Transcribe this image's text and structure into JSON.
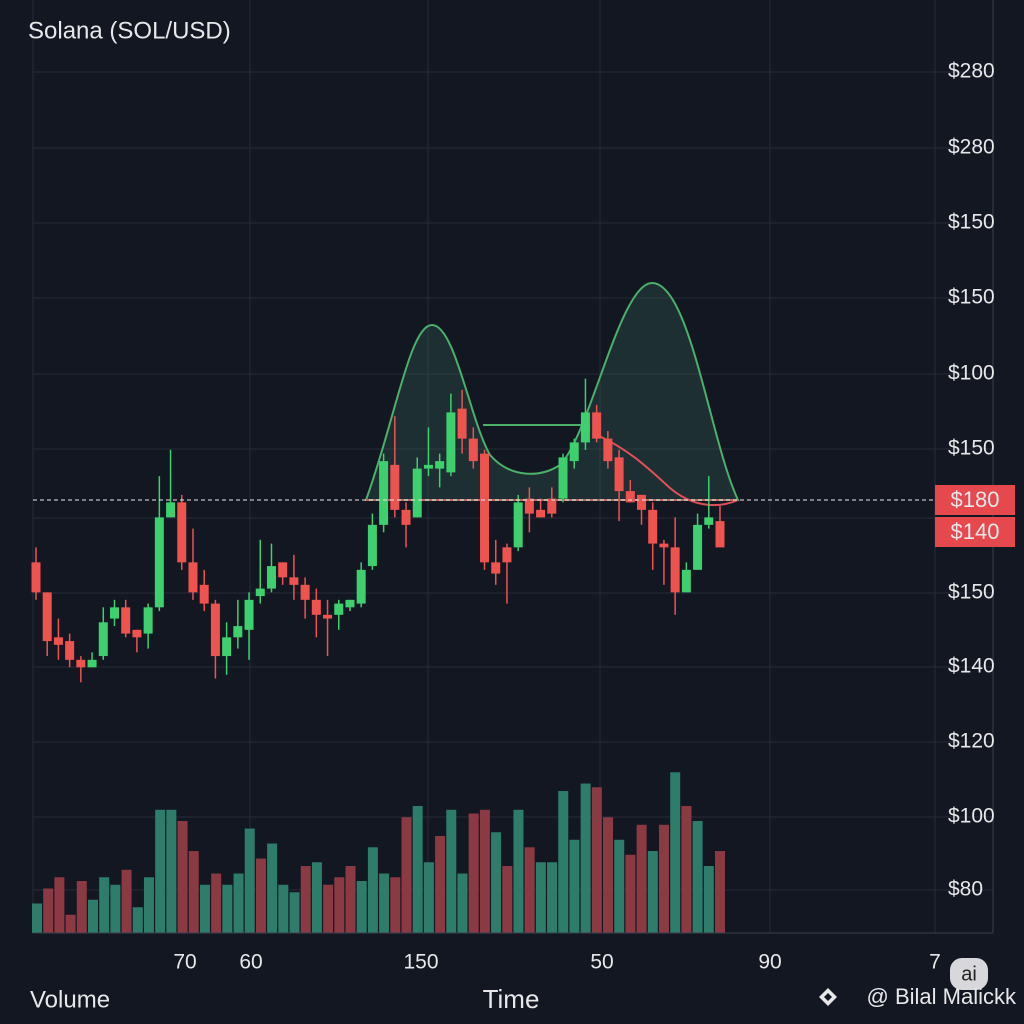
{
  "chart_data": {
    "type": "candlestick",
    "title": "Solana (SOL/USD)",
    "x_axis_title": "Time",
    "volume_title": "Volume",
    "x_axis_labels": [
      "70",
      "60",
      "150",
      "50",
      "90",
      "7"
    ],
    "y_axis_labels": [
      "$280",
      "$280",
      "$150",
      "$150",
      "$100",
      "$150",
      "$150",
      "$140",
      "$120",
      "$100",
      "$80"
    ],
    "price_badges": [
      "$180",
      "$140"
    ],
    "watermark": "@ Bilal Malickk",
    "badge": "ai",
    "ylim": [
      70,
      317
    ],
    "up_color": "#3ecf6e",
    "down_color": "#ef5350",
    "open": [
      167,
      159,
      147,
      146,
      141,
      139,
      142,
      152,
      155,
      149,
      148,
      155,
      179,
      183,
      167,
      161,
      156,
      142,
      147,
      149,
      158,
      160,
      167,
      163,
      161,
      157,
      153,
      153,
      155,
      156,
      166,
      177,
      193,
      181,
      179,
      192,
      192,
      191,
      208,
      200,
      196,
      167,
      171,
      171,
      184,
      181,
      184,
      184,
      194,
      199,
      207,
      200,
      195,
      186,
      185,
      181,
      172,
      171,
      159,
      165,
      177,
      178
    ],
    "high": [
      171,
      159,
      152,
      148,
      142,
      143,
      155,
      157,
      157,
      149,
      156,
      190,
      197,
      185,
      176,
      165,
      157,
      151,
      157,
      159,
      173,
      172,
      167,
      169,
      163,
      160,
      157,
      157,
      157,
      167,
      180,
      196,
      206,
      183,
      195,
      203,
      196,
      212,
      213,
      203,
      197,
      173,
      172,
      185,
      187,
      184,
      187,
      196,
      200,
      216,
      209,
      202,
      197,
      189,
      185,
      183,
      173,
      179,
      167,
      180,
      190,
      182
    ],
    "low": [
      157,
      142,
      141,
      139,
      135,
      139,
      141,
      150,
      147,
      143,
      144,
      154,
      179,
      165,
      157,
      154,
      136,
      137,
      144,
      141,
      156,
      159,
      161,
      157,
      152,
      147,
      142,
      149,
      154,
      155,
      165,
      175,
      179,
      171,
      179,
      190,
      187,
      190,
      196,
      192,
      165,
      161,
      156,
      170,
      175,
      179,
      179,
      183,
      192,
      197,
      199,
      192,
      178,
      183,
      177,
      165,
      161,
      153,
      159,
      165,
      176,
      171
    ],
    "close": [
      159,
      146,
      145,
      141,
      139,
      141,
      151,
      155,
      148,
      147,
      155,
      179,
      183,
      167,
      159,
      156,
      142,
      147,
      150,
      157,
      160,
      166,
      163,
      161,
      157,
      153,
      152,
      156,
      157,
      165,
      177,
      194,
      181,
      177,
      192,
      193,
      194,
      207,
      200,
      194,
      167,
      164,
      167,
      183,
      180,
      179,
      180,
      195,
      199,
      207,
      200,
      194,
      186,
      183,
      181,
      172,
      171,
      159,
      165,
      177,
      179,
      171
    ],
    "volume": [
      76,
      80,
      83,
      73,
      82,
      77,
      83,
      81,
      85,
      75,
      83,
      101,
      101,
      98,
      90,
      81,
      84,
      81,
      84,
      96,
      88,
      92,
      81,
      79,
      86,
      87,
      81,
      83,
      86,
      82,
      91,
      84,
      83,
      99,
      102,
      87,
      94,
      101,
      84,
      100,
      101,
      95,
      86,
      101,
      91,
      87,
      87,
      106,
      93,
      108,
      107,
      99,
      93,
      89,
      97,
      90,
      97,
      111,
      102,
      98,
      86,
      90
    ],
    "volume_colors": [
      "#2e7d6b",
      "#8b3a44",
      "#8b3a44",
      "#8b3a44",
      "#8b3a44",
      "#2e7d6b",
      "#2e7d6b",
      "#2e7d6b",
      "#8b3a44",
      "#2e7d6b",
      "#2e7d6b",
      "#2e7d6b",
      "#2e7d6b",
      "#8b3a44",
      "#8b3a44",
      "#2e7d6b",
      "#8b3a44",
      "#2e7d6b",
      "#2e7d6b",
      "#2e7d6b",
      "#8b3a44",
      "#2e7d6b",
      "#2e7d6b",
      "#2e7d6b",
      "#8b3a44",
      "#2e7d6b",
      "#8b3a44",
      "#8b3a44",
      "#8b3a44",
      "#2e7d6b",
      "#2e7d6b",
      "#2e7d6b",
      "#8b3a44",
      "#8b3a44",
      "#2e7d6b",
      "#2e7d6b",
      "#8b3a44",
      "#2e7d6b",
      "#2e7d6b",
      "#8b3a44",
      "#8b3a44",
      "#2e7d6b",
      "#8b3a44",
      "#2e7d6b",
      "#8b3a44",
      "#2e7d6b",
      "#2e7d6b",
      "#2e7d6b",
      "#2e7d6b",
      "#2e7d6b",
      "#8b3a44",
      "#8b3a44",
      "#2e7d6b",
      "#8b3a44",
      "#8b3a44",
      "#2e7d6b",
      "#8b3a44",
      "#2e7d6b",
      "#8b3a44",
      "#2e7d6b",
      "#2e7d6b",
      "#8b3a44"
    ]
  }
}
